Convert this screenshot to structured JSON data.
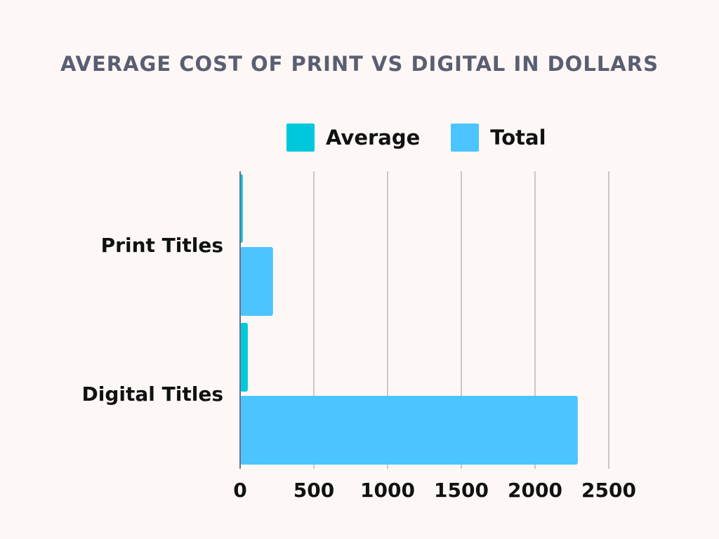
{
  "chart_data": {
    "type": "bar",
    "orientation": "horizontal",
    "title": "AVERAGE COST OF PRINT VS DIGITAL IN DOLLARS",
    "categories": [
      "Print Titles",
      "Digital Titles"
    ],
    "series": [
      {
        "name": "Average",
        "values": [
          18,
          52
        ],
        "color": "#00c8dc"
      },
      {
        "name": "Total",
        "values": [
          223,
          2290
        ],
        "color": "#4cc4ff"
      }
    ],
    "xlim": [
      0,
      2500
    ],
    "xticks": [
      0,
      500,
      1000,
      1500,
      2000,
      2500
    ],
    "xlabel": "",
    "ylabel": "",
    "grid": true,
    "legend_position": "top"
  }
}
